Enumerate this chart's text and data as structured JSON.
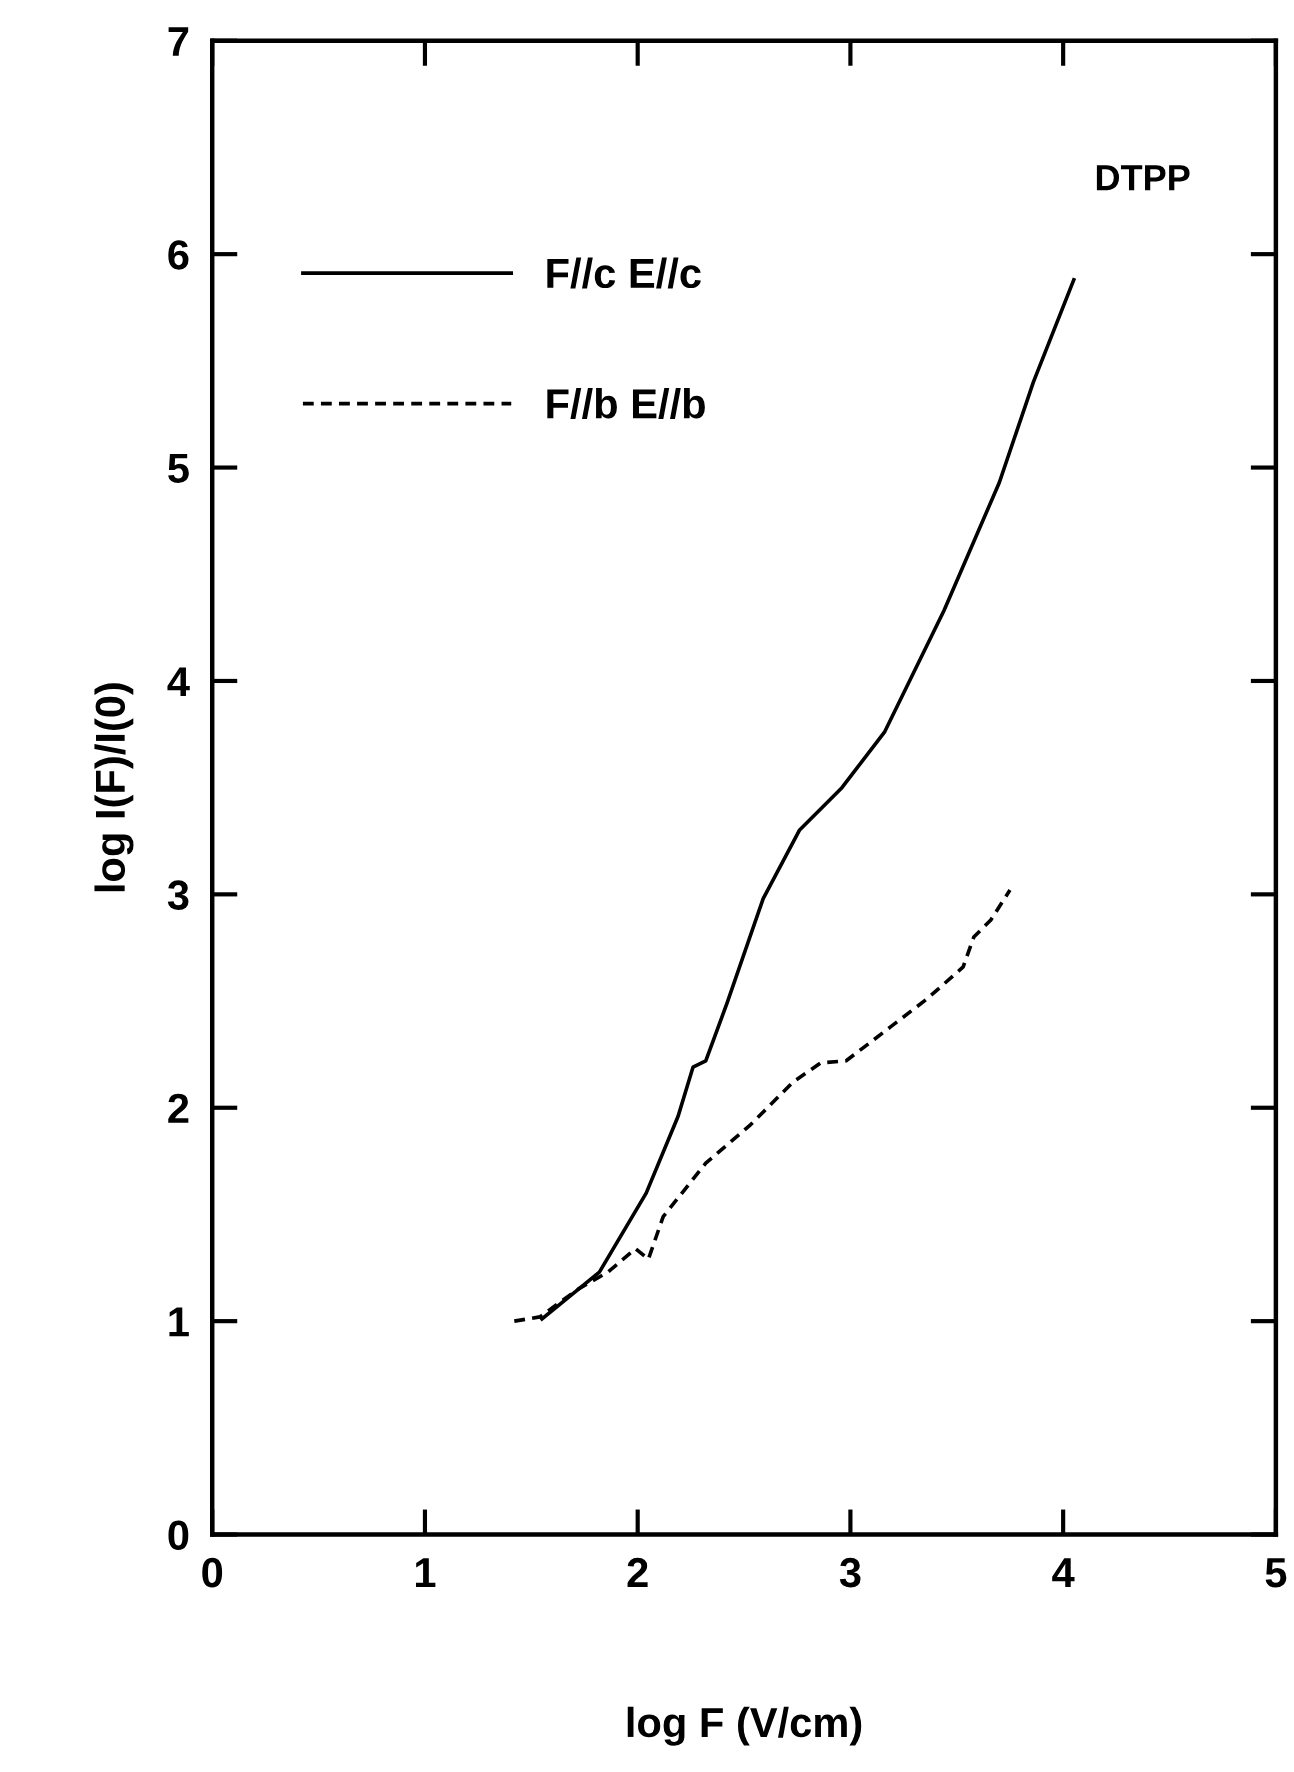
{
  "chart_data": {
    "type": "line",
    "xlabel": "log F (V/cm)",
    "ylabel": "log I(F)/I(0)",
    "annotations": [
      "DTPP"
    ],
    "xlim": [
      0,
      5
    ],
    "ylim": [
      0,
      7
    ],
    "xticks": [
      0,
      1,
      2,
      3,
      4,
      5
    ],
    "yticks": [
      0,
      1,
      2,
      3,
      4,
      5,
      6,
      7
    ],
    "grid": false,
    "legend": "top left",
    "series": [
      {
        "name": "F//c E//c",
        "color": "#000000",
        "line_style": "solid",
        "x": [
          1.55,
          1.82,
          2.04,
          2.19,
          2.26,
          2.32,
          2.42,
          2.59,
          2.76,
          2.96,
          3.16,
          3.44,
          3.7,
          3.86,
          4.05
        ],
        "values": [
          1.01,
          1.23,
          1.6,
          1.96,
          2.19,
          2.22,
          2.49,
          2.98,
          3.3,
          3.5,
          3.76,
          4.33,
          4.93,
          5.4,
          5.88
        ]
      },
      {
        "name": "F//b E//b",
        "color": "#000000",
        "line_style": "dashed",
        "x": [
          1.42,
          1.54,
          1.72,
          1.86,
          1.99,
          2.05,
          2.12,
          2.32,
          2.53,
          2.73,
          2.86,
          2.98,
          3.19,
          3.36,
          3.53,
          3.58,
          3.66,
          3.75
        ],
        "values": [
          1.0,
          1.02,
          1.15,
          1.23,
          1.34,
          1.29,
          1.49,
          1.74,
          1.92,
          2.12,
          2.21,
          2.22,
          2.38,
          2.51,
          2.66,
          2.8,
          2.88,
          3.02
        ]
      }
    ]
  }
}
